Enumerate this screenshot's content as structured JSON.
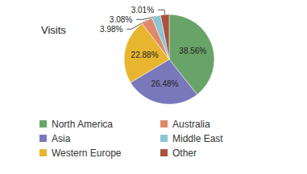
{
  "chart_data": {
    "type": "pie",
    "title": "Visits",
    "categories": [
      "North America",
      "Asia",
      "Western Europe",
      "Australia",
      "Middle East",
      "Other"
    ],
    "values": [
      38.56,
      26.48,
      22.88,
      3.98,
      3.08,
      3.01
    ],
    "value_labels": [
      "38.56%",
      "26.48%",
      "22.88%",
      "3.98%",
      "3.08%",
      "3.01%"
    ],
    "colors": [
      "#68a468",
      "#7a78bc",
      "#e8b530",
      "#e0896a",
      "#8cc4d6",
      "#a9533e"
    ],
    "data_labels": true,
    "legend": "bottom"
  }
}
